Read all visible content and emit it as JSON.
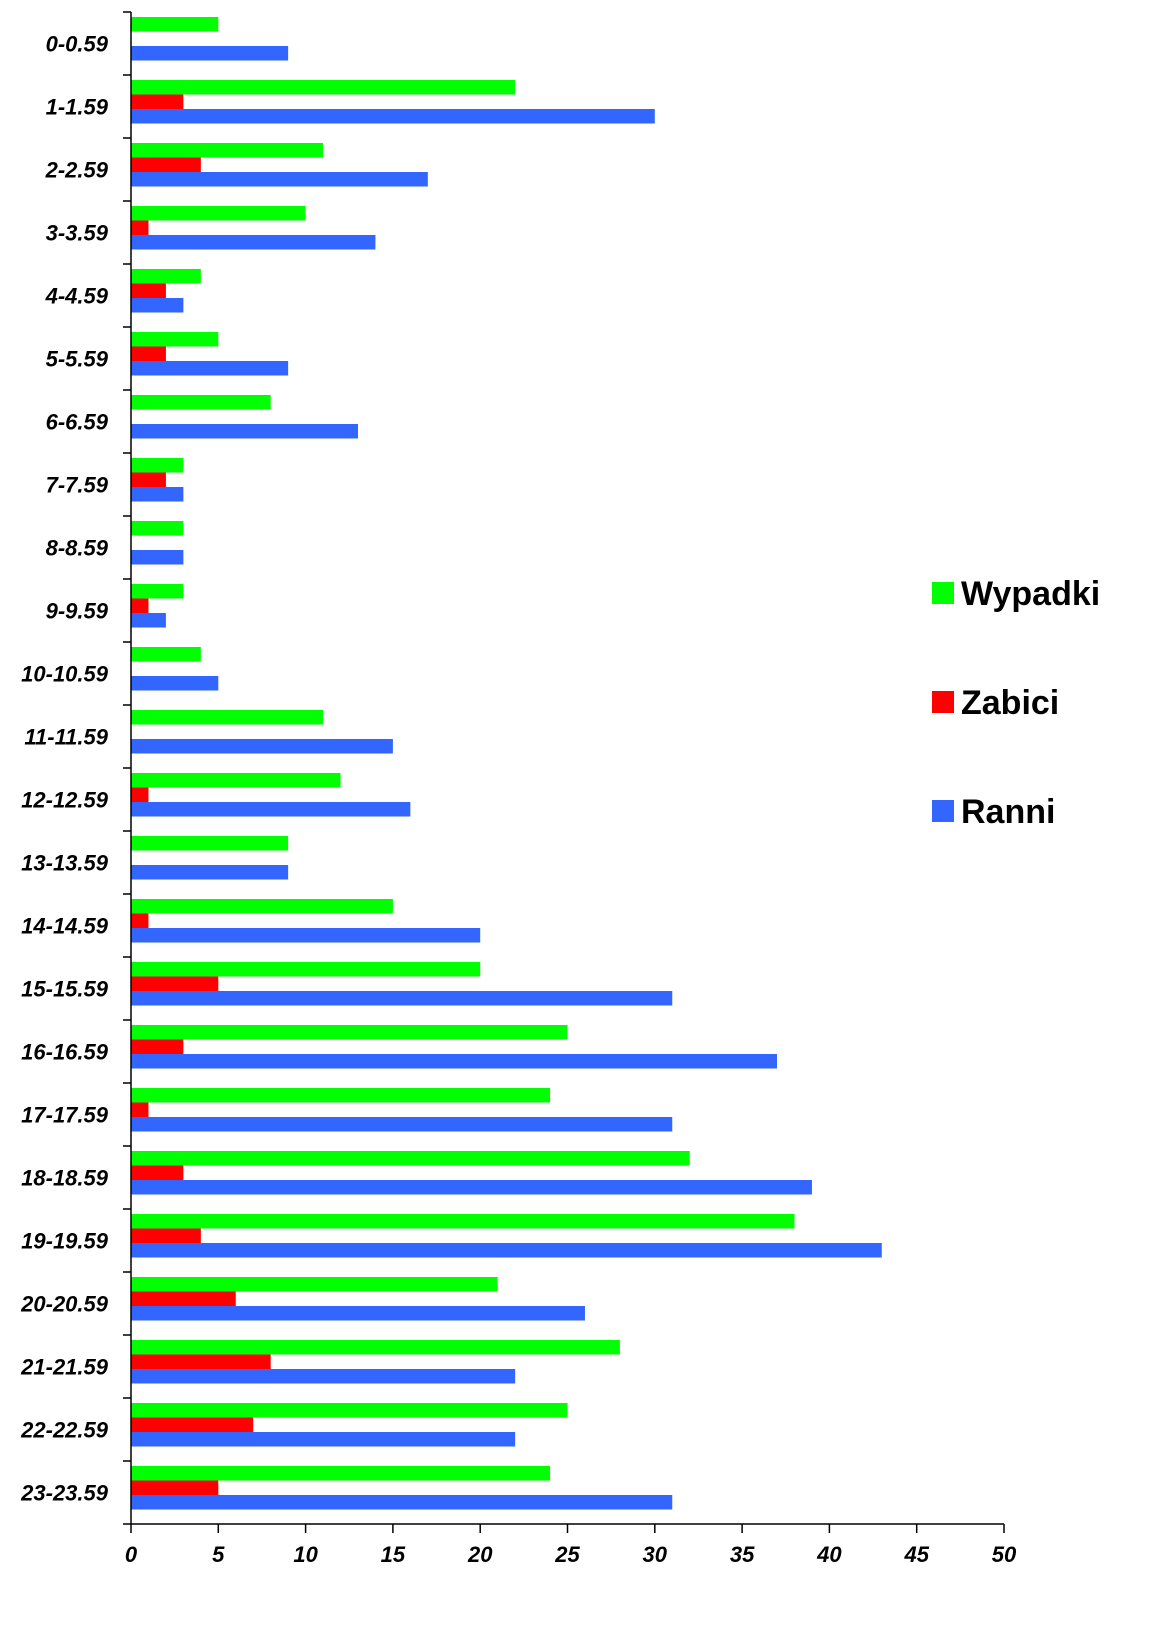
{
  "chart_data": {
    "type": "bar",
    "orientation": "horizontal",
    "categories": [
      "0-0.59",
      "1-1.59",
      "2-2.59",
      "3-3.59",
      "4-4.59",
      "5-5.59",
      "6-6.59",
      "7-7.59",
      "8-8.59",
      "9-9.59",
      "10-10.59",
      "11-11.59",
      "12-12.59",
      "13-13.59",
      "14-14.59",
      "15-15.59",
      "16-16.59",
      "17-17.59",
      "18-18.59",
      "19-19.59",
      "20-20.59",
      "21-21.59",
      "22-22.59",
      "23-23.59"
    ],
    "series": [
      {
        "name": "Wypadki",
        "color": "#00ff00",
        "values": [
          5,
          22,
          11,
          10,
          4,
          5,
          8,
          3,
          3,
          3,
          4,
          11,
          12,
          9,
          15,
          20,
          25,
          24,
          32,
          38,
          21,
          28,
          25,
          24
        ]
      },
      {
        "name": "Zabici",
        "color": "#ff0000",
        "values": [
          0,
          3,
          4,
          1,
          2,
          2,
          0,
          2,
          0,
          1,
          0,
          0,
          1,
          0,
          1,
          5,
          3,
          1,
          3,
          4,
          6,
          8,
          7,
          5
        ]
      },
      {
        "name": "Ranni",
        "color": "#3366ff",
        "values": [
          9,
          30,
          17,
          14,
          3,
          9,
          13,
          3,
          3,
          2,
          5,
          15,
          16,
          9,
          20,
          31,
          37,
          31,
          39,
          43,
          26,
          22,
          22,
          31
        ]
      }
    ],
    "xlim": [
      0,
      50
    ],
    "xticks": [
      "0",
      "5",
      "10",
      "15",
      "20",
      "25",
      "30",
      "35",
      "40",
      "45",
      "50"
    ],
    "title": "",
    "xlabel": "",
    "ylabel": "",
    "grid": false,
    "legend_position": "right"
  }
}
